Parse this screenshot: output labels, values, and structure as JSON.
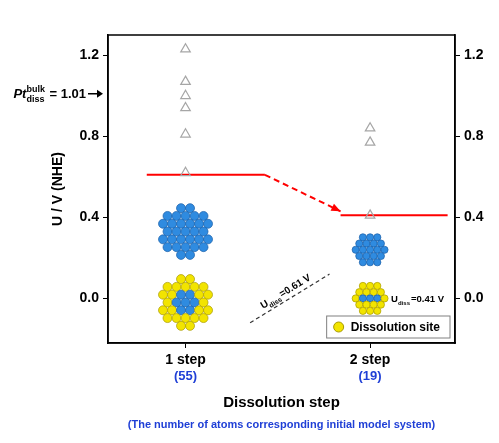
{
  "chart_data": {
    "type": "scatter",
    "y_label": "U / V (NHE)",
    "x_label": "Dissolution step",
    "x_subtitle": "(The number of atoms corresponding initial model system)",
    "xlim": [
      0.58,
      2.46
    ],
    "xticks": [
      {
        "value": 1,
        "label": "1 step"
      },
      {
        "value": 2,
        "label": "2 step"
      }
    ],
    "x_tick_sublabels": [
      "(55)",
      "(19)"
    ],
    "ylim": [
      -0.22,
      1.3
    ],
    "yticks": [
      {
        "value": 0,
        "label": "0.0"
      },
      {
        "value": 0.4,
        "label": "0.4"
      },
      {
        "value": 0.8,
        "label": "0.8"
      },
      {
        "value": 1.2,
        "label": "1.2"
      }
    ],
    "y2lim": [
      -0.22,
      1.3
    ],
    "y2ticks": [
      {
        "value": 0,
        "label": "0.0"
      },
      {
        "value": 0.4,
        "label": "0.4"
      },
      {
        "value": 0.8,
        "label": "0.8"
      },
      {
        "value": 1.2,
        "label": "1.2"
      }
    ],
    "grid": false,
    "legend": "bottom right",
    "legend_items": [
      {
        "label": "Dissolution site",
        "color": "#f2e400",
        "marker": "circle"
      }
    ],
    "series": [
      {
        "type": "scatter",
        "marker": "triangle",
        "color": "#a6a6a6",
        "x": [
          1,
          1,
          1,
          1,
          1,
          1,
          2,
          2,
          2
        ],
        "values": [
          1.23,
          1.07,
          1.0,
          0.94,
          0.81,
          0.62,
          0.84,
          0.77,
          0.41
        ]
      },
      {
        "type": "line",
        "color": "#ff0000",
        "line_style": "solid",
        "x": [
          0.79,
          1.43
        ],
        "values": [
          0.61,
          0.61
        ]
      },
      {
        "type": "line",
        "color": "#ff0000",
        "line_style": "dashed",
        "marker": "arrow",
        "x": [
          1.43,
          1.84
        ],
        "values": [
          0.61,
          0.43
        ]
      },
      {
        "type": "line",
        "color": "#ff0000",
        "line_style": "solid",
        "x": [
          1.84,
          2.42
        ],
        "values": [
          0.41,
          0.41
        ]
      }
    ],
    "annotations": [
      {
        "text": "Pt",
        "subscript": "diss",
        "superscript": "bulk",
        "suffix": " = 1.01",
        "y": 1.01
      },
      {
        "text": "U",
        "subscript": "diss",
        "suffix": "=0.61 V"
      },
      {
        "text": "U",
        "subscript": "diss",
        "suffix": "=0.41 V"
      }
    ]
  }
}
